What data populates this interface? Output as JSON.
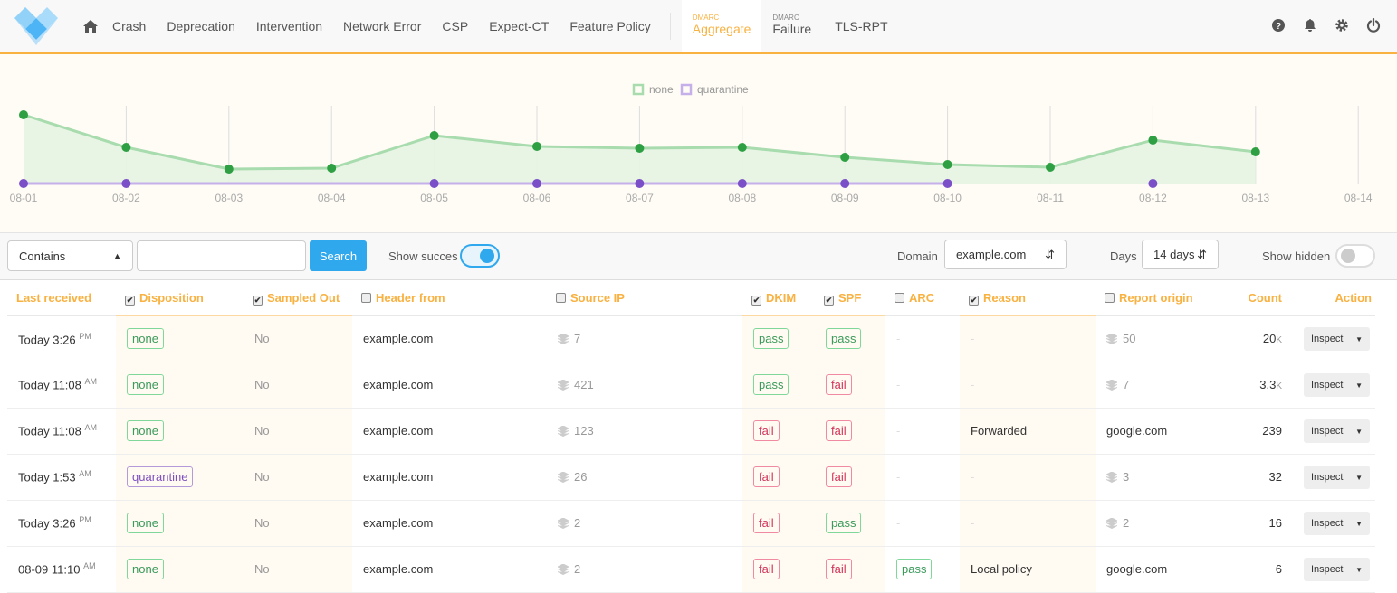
{
  "nav": {
    "items": [
      "Crash",
      "Deprecation",
      "Intervention",
      "Network Error",
      "CSP",
      "Expect-CT",
      "Feature Policy"
    ],
    "dmarc_aggregate": {
      "small": "DMARC",
      "label": "Aggregate"
    },
    "dmarc_failure": {
      "small": "DMARC",
      "label": "Failure"
    },
    "tls": "TLS-RPT",
    "accent": "#f9b140"
  },
  "chart_data": {
    "type": "line",
    "x": [
      "08-01",
      "08-02",
      "08-03",
      "08-04",
      "08-05",
      "08-06",
      "08-07",
      "08-08",
      "08-09",
      "08-10",
      "08-11",
      "08-12",
      "08-13",
      "08-14"
    ],
    "series": [
      {
        "name": "none",
        "color": "#2ea043",
        "values": [
          76,
          40,
          16,
          17,
          53,
          41,
          39,
          40,
          29,
          21,
          18,
          48,
          35,
          null
        ]
      },
      {
        "name": "quarantine",
        "color": "#7b4fc7",
        "values": [
          0,
          0,
          null,
          null,
          0,
          0,
          0,
          0,
          0,
          0,
          null,
          0,
          null,
          null
        ]
      }
    ],
    "legend": "top-center",
    "grid": "vertical",
    "y_axis_shown": false
  },
  "filters": {
    "match": "Contains",
    "search_value": "",
    "search_label": "Search",
    "show_success_label": "Show succes",
    "show_success": true,
    "domain_label": "Domain",
    "domain": "example.com",
    "days_label": "Days",
    "days": "14 days",
    "show_hidden_label": "Show hidden",
    "show_hidden": false
  },
  "table": {
    "headers": [
      {
        "label": "Last received"
      },
      {
        "label": "Disposition",
        "checked": true
      },
      {
        "label": "Sampled Out",
        "checked": true
      },
      {
        "label": "Header from",
        "checked": false
      },
      {
        "label": "Source IP",
        "checked": false
      },
      {
        "label": "DKIM",
        "checked": true
      },
      {
        "label": "SPF",
        "checked": true
      },
      {
        "label": "ARC",
        "checked": false
      },
      {
        "label": "Reason",
        "checked": true
      },
      {
        "label": "Report origin",
        "checked": false
      },
      {
        "label": "Count"
      },
      {
        "label": "Action"
      }
    ],
    "rows": [
      {
        "time": "Today 3:26",
        "ampm": "PM",
        "disposition": "none",
        "sampled": "No",
        "header_from": "example.com",
        "source_ip": "7",
        "dkim": "pass",
        "spf": "pass",
        "arc": "",
        "reason": "",
        "origin": "50",
        "origin_stack": true,
        "count": "20",
        "count_unit": "K",
        "action": "Inspect"
      },
      {
        "time": "Today 11:08",
        "ampm": "AM",
        "disposition": "none",
        "sampled": "No",
        "header_from": "example.com",
        "source_ip": "421",
        "dkim": "pass",
        "spf": "fail",
        "arc": "",
        "reason": "",
        "origin": "7",
        "origin_stack": true,
        "count": "3.3",
        "count_unit": "K",
        "action": "Inspect"
      },
      {
        "time": "Today 11:08",
        "ampm": "AM",
        "disposition": "none",
        "sampled": "No",
        "header_from": "example.com",
        "source_ip": "123",
        "dkim": "fail",
        "spf": "fail",
        "arc": "",
        "reason": "Forwarded",
        "origin": "google.com",
        "origin_stack": false,
        "count": "239",
        "count_unit": "",
        "action": "Inspect"
      },
      {
        "time": "Today 1:53",
        "ampm": "AM",
        "disposition": "quarantine",
        "sampled": "No",
        "header_from": "example.com",
        "source_ip": "26",
        "dkim": "fail",
        "spf": "fail",
        "arc": "",
        "reason": "",
        "origin": "3",
        "origin_stack": true,
        "count": "32",
        "count_unit": "",
        "action": "Inspect"
      },
      {
        "time": "Today 3:26",
        "ampm": "PM",
        "disposition": "none",
        "sampled": "No",
        "header_from": "example.com",
        "source_ip": "2",
        "dkim": "fail",
        "spf": "pass",
        "arc": "",
        "reason": "",
        "origin": "2",
        "origin_stack": true,
        "count": "16",
        "count_unit": "",
        "action": "Inspect"
      },
      {
        "time": "08-09 11:10",
        "ampm": "AM",
        "disposition": "none",
        "sampled": "No",
        "header_from": "example.com",
        "source_ip": "2",
        "dkim": "fail",
        "spf": "fail",
        "arc": "pass",
        "reason": "Local policy",
        "origin": "google.com",
        "origin_stack": false,
        "count": "6",
        "count_unit": "",
        "action": "Inspect"
      }
    ]
  }
}
